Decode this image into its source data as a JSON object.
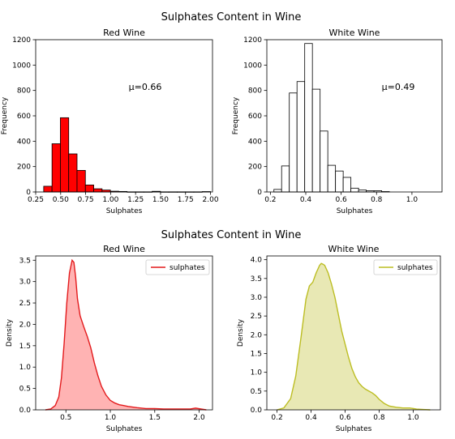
{
  "figure": {
    "suptitle_top": "Sulphates Content in Wine",
    "suptitle_bottom": "Sulphates Content in Wine"
  },
  "chart_data": [
    {
      "type": "bar",
      "subtype": "histogram",
      "title": "Red Wine",
      "xlabel": "Sulphates",
      "ylabel": "Frequency",
      "xlim": [
        0.25,
        2.02
      ],
      "ylim": [
        0,
        1200
      ],
      "xticks": [
        0.25,
        0.5,
        0.75,
        1.0,
        1.25,
        1.5,
        1.75,
        2.0
      ],
      "xtick_labels": [
        "0.25",
        "0.50",
        "0.75",
        "1.00",
        "1.25",
        "1.50",
        "1.75",
        "2.00"
      ],
      "yticks": [
        0,
        200,
        400,
        600,
        800,
        1000,
        1200
      ],
      "bin_edges": [
        0.33,
        0.4135,
        0.497,
        0.5805,
        0.664,
        0.7475,
        0.831,
        0.9145,
        0.998,
        1.0815,
        1.165,
        1.2485,
        1.332,
        1.4155,
        1.499,
        1.5825,
        1.666,
        1.7495,
        1.833,
        1.9165,
        2.0
      ],
      "values": [
        45,
        380,
        585,
        300,
        170,
        55,
        25,
        15,
        6,
        4,
        1,
        1,
        1,
        5,
        1,
        1,
        1,
        1,
        1,
        3
      ],
      "bar_color": "#ff0000",
      "edge_color": "#000000",
      "annotation": "μ=0.66"
    },
    {
      "type": "bar",
      "subtype": "histogram",
      "title": "White Wine",
      "xlabel": "Sulphates",
      "ylabel": "Frequency",
      "xlim": [
        0.18,
        1.17
      ],
      "ylim": [
        0,
        1200
      ],
      "xticks": [
        0.2,
        0.4,
        0.6,
        0.8,
        1.0
      ],
      "xtick_labels": [
        "0.2",
        "0.4",
        "0.6",
        "0.8",
        "1.0"
      ],
      "yticks": [
        0,
        200,
        400,
        600,
        800,
        1000,
        1200
      ],
      "bin_edges": [
        0.22,
        0.2635,
        0.307,
        0.3505,
        0.394,
        0.4375,
        0.481,
        0.5245,
        0.568,
        0.6115,
        0.655,
        0.6985,
        0.742,
        0.7855,
        0.829,
        0.8725,
        0.916,
        0.9595,
        1.003,
        1.0465,
        1.09
      ],
      "values": [
        20,
        205,
        780,
        870,
        1170,
        810,
        480,
        210,
        165,
        115,
        30,
        15,
        10,
        10,
        3,
        0,
        0,
        0,
        0,
        0
      ],
      "bar_color": "#ffffff",
      "edge_color": "#000000",
      "annotation": "μ=0.49"
    },
    {
      "type": "area",
      "subtype": "kde",
      "title": "Red Wine",
      "xlabel": "Sulphates",
      "ylabel": "Density",
      "xlim": [
        0.16,
        2.15
      ],
      "ylim": [
        0,
        3.6
      ],
      "xticks": [
        0.5,
        1.0,
        1.5,
        2.0
      ],
      "xtick_labels": [
        "0.5",
        "1.0",
        "1.5",
        "2.0"
      ],
      "yticks": [
        0.0,
        0.5,
        1.0,
        1.5,
        2.0,
        2.5,
        3.0,
        3.5
      ],
      "ytick_labels": [
        "0.0",
        "0.5",
        "1.0",
        "1.5",
        "2.0",
        "2.5",
        "3.0",
        "3.5"
      ],
      "legend": "top-right",
      "series": [
        {
          "name": "sulphates",
          "color": "#e31a1c",
          "fill": "#ffb3b3",
          "x": [
            0.27,
            0.33,
            0.38,
            0.42,
            0.45,
            0.48,
            0.51,
            0.54,
            0.57,
            0.59,
            0.61,
            0.63,
            0.66,
            0.7,
            0.74,
            0.78,
            0.82,
            0.86,
            0.9,
            0.95,
            1.0,
            1.05,
            1.1,
            1.15,
            1.2,
            1.3,
            1.4,
            1.5,
            1.6,
            1.7,
            1.8,
            1.9,
            1.96,
            2.02,
            2.08
          ],
          "y": [
            0.0,
            0.02,
            0.1,
            0.3,
            0.75,
            1.55,
            2.5,
            3.2,
            3.5,
            3.45,
            3.1,
            2.6,
            2.2,
            1.95,
            1.72,
            1.45,
            1.1,
            0.8,
            0.55,
            0.35,
            0.22,
            0.16,
            0.12,
            0.1,
            0.08,
            0.05,
            0.03,
            0.03,
            0.02,
            0.02,
            0.02,
            0.02,
            0.04,
            0.02,
            0.0
          ]
        }
      ]
    },
    {
      "type": "area",
      "subtype": "kde",
      "title": "White Wine",
      "xlabel": "Sulphates",
      "ylabel": "Density",
      "xlim": [
        0.14,
        1.16
      ],
      "ylim": [
        0,
        4.1
      ],
      "xticks": [
        0.2,
        0.4,
        0.6,
        0.8,
        1.0
      ],
      "xtick_labels": [
        "0.2",
        "0.4",
        "0.6",
        "0.8",
        "1.0"
      ],
      "yticks": [
        0.0,
        0.5,
        1.0,
        1.5,
        2.0,
        2.5,
        3.0,
        3.5,
        4.0
      ],
      "ytick_labels": [
        "0.0",
        "0.5",
        "1.0",
        "1.5",
        "2.0",
        "2.5",
        "3.0",
        "3.5",
        "4.0"
      ],
      "legend": "top-right",
      "series": [
        {
          "name": "sulphates",
          "color": "#bcbd22",
          "fill": "#e8e8b4",
          "x": [
            0.2,
            0.24,
            0.28,
            0.31,
            0.34,
            0.37,
            0.39,
            0.41,
            0.43,
            0.45,
            0.46,
            0.47,
            0.48,
            0.5,
            0.52,
            0.54,
            0.56,
            0.58,
            0.6,
            0.62,
            0.64,
            0.66,
            0.68,
            0.7,
            0.72,
            0.74,
            0.76,
            0.78,
            0.8,
            0.83,
            0.86,
            0.9,
            0.94,
            0.98,
            1.02,
            1.06,
            1.1
          ],
          "y": [
            0.0,
            0.05,
            0.3,
            0.9,
            1.9,
            2.95,
            3.3,
            3.4,
            3.65,
            3.85,
            3.9,
            3.88,
            3.85,
            3.65,
            3.35,
            3.0,
            2.55,
            2.1,
            1.75,
            1.4,
            1.1,
            0.88,
            0.72,
            0.62,
            0.55,
            0.5,
            0.45,
            0.38,
            0.28,
            0.17,
            0.1,
            0.07,
            0.05,
            0.05,
            0.02,
            0.01,
            0.0
          ]
        }
      ]
    }
  ]
}
